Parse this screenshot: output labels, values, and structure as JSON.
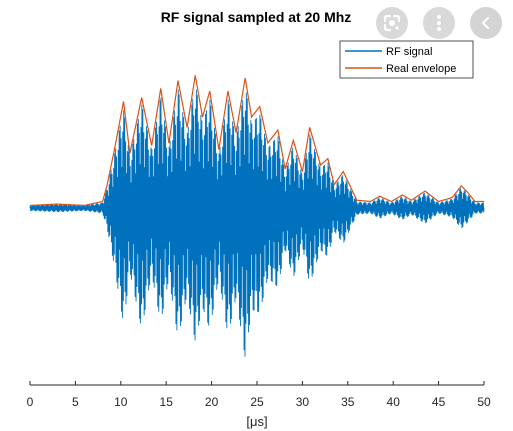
{
  "chart_data": {
    "type": "line",
    "title": "RF signal sampled at 20 Mhz",
    "xlabel": "[μs]",
    "ylabel": "",
    "xlim": [
      0,
      50
    ],
    "xticks": [
      0,
      5,
      10,
      15,
      20,
      25,
      30,
      35,
      40,
      45,
      50
    ],
    "xtick_labels": [
      "0",
      "5",
      "10",
      "15",
      "20",
      "25",
      "30",
      "35",
      "40",
      "45",
      "50"
    ],
    "ylim": [
      -1.15,
      1.15
    ],
    "y_axis_visible": false,
    "grid": false,
    "legend_position": "top-right",
    "legend": [
      "RF signal",
      "Real envelope"
    ],
    "series": [
      {
        "name": "Real envelope",
        "color": "#d95319",
        "x": [
          0,
          3,
          6,
          8,
          8.5,
          9.3,
          10.3,
          11,
          12.3,
          13.4,
          14.4,
          15.3,
          16.3,
          17.3,
          18.2,
          19,
          19.8,
          20.8,
          21.8,
          22.7,
          23.7,
          24.4,
          25.3,
          26.2,
          27.3,
          28.1,
          29,
          30,
          30.8,
          32,
          32.8,
          33.5,
          34.5,
          36,
          37.5,
          38.5,
          39.8,
          41,
          42,
          43.5,
          45,
          46.5,
          47.5,
          48.2,
          49,
          50
        ],
        "y": [
          0.02,
          0.03,
          0.02,
          0.05,
          0.18,
          0.45,
          0.82,
          0.42,
          0.85,
          0.48,
          0.92,
          0.5,
          0.98,
          0.62,
          1.02,
          0.7,
          0.9,
          0.45,
          0.9,
          0.58,
          1.0,
          0.7,
          0.78,
          0.5,
          0.6,
          0.3,
          0.52,
          0.28,
          0.62,
          0.33,
          0.38,
          0.18,
          0.28,
          0.06,
          0.05,
          0.09,
          0.05,
          0.1,
          0.06,
          0.13,
          0.05,
          0.08,
          0.17,
          0.12,
          0.05,
          0.05
        ]
      },
      {
        "name": "RF signal",
        "color": "#0072bd",
        "x": [
          0,
          3,
          6,
          8,
          8.5,
          9.3,
          10.3,
          11,
          12.3,
          13.4,
          14.4,
          15.3,
          16.3,
          17.3,
          18.2,
          19,
          19.8,
          20.8,
          21.8,
          22.7,
          23.7,
          24.4,
          25.3,
          26.2,
          27.3,
          28.1,
          29,
          30,
          30.8,
          32,
          32.8,
          33.5,
          34.5,
          36,
          37.5,
          38.5,
          39.8,
          41,
          42,
          43.5,
          45,
          46.5,
          47.5,
          48.2,
          49,
          50
        ],
        "y_upper": [
          0.02,
          0.03,
          0.02,
          0.04,
          0.16,
          0.42,
          0.78,
          0.4,
          0.82,
          0.45,
          0.88,
          0.47,
          0.94,
          0.58,
          0.98,
          0.66,
          0.86,
          0.42,
          0.86,
          0.55,
          0.96,
          0.66,
          0.74,
          0.47,
          0.57,
          0.28,
          0.49,
          0.26,
          0.58,
          0.31,
          0.36,
          0.17,
          0.26,
          0.05,
          0.04,
          0.08,
          0.04,
          0.09,
          0.05,
          0.12,
          0.04,
          0.07,
          0.16,
          0.11,
          0.04,
          0.04
        ],
        "y_lower": [
          -0.02,
          -0.03,
          -0.02,
          -0.04,
          -0.16,
          -0.46,
          -0.92,
          -0.5,
          -0.95,
          -0.52,
          -0.9,
          -0.55,
          -1.02,
          -0.68,
          -1.05,
          -0.78,
          -0.95,
          -0.55,
          -1.0,
          -0.7,
          -1.18,
          -0.8,
          -0.82,
          -0.55,
          -0.62,
          -0.32,
          -0.55,
          -0.3,
          -0.6,
          -0.33,
          -0.38,
          -0.18,
          -0.28,
          -0.05,
          -0.04,
          -0.08,
          -0.04,
          -0.09,
          -0.05,
          -0.12,
          -0.04,
          -0.07,
          -0.16,
          -0.11,
          -0.04,
          -0.04
        ]
      }
    ]
  },
  "overlay": {
    "lens_icon": "google-lens-icon",
    "more_icon": "more-vertical-icon",
    "back_icon": "chevron-left-icon"
  }
}
